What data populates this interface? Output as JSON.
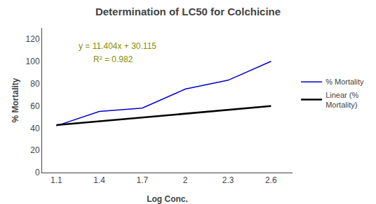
{
  "chart_data": {
    "type": "line",
    "title": "Determination of LC50 for Colchicine",
    "xlabel": "Log Conc.",
    "ylabel": "% Mortality",
    "series": [
      {
        "name": "% Mortality",
        "color": "#0000CD",
        "x": [
          1.1,
          1.4,
          1.7,
          2.0,
          2.3,
          2.6
        ],
        "values": [
          42,
          55,
          58,
          75,
          83,
          100
        ]
      },
      {
        "name": "Linear (%\nMortality)",
        "color": "#000000",
        "x": [
          1.1,
          2.6
        ],
        "values": [
          42.6594,
          59.7654
        ]
      }
    ],
    "annotations": [
      {
        "text": "y = 11.404x + 30.115",
        "color": "#8B8B00"
      },
      {
        "text": "R² = 0.982",
        "color": "#8B8B00"
      }
    ],
    "xlim": [
      1.0,
      2.75
    ],
    "ylim": [
      0,
      130
    ],
    "xticks": [
      1.1,
      1.4,
      1.7,
      2.0,
      2.3,
      2.6
    ],
    "yticks": [
      0,
      20,
      40,
      60,
      80,
      100,
      120
    ],
    "grid": false,
    "legend": "right"
  }
}
